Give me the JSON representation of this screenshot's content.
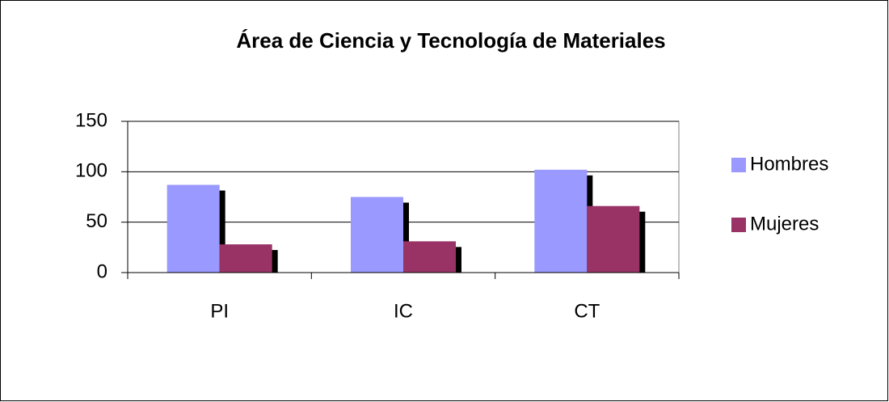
{
  "chart_data": {
    "type": "bar",
    "title": "Área de Ciencia y Tecnología de Materiales",
    "categories": [
      "PI",
      "IC",
      "CT"
    ],
    "series": [
      {
        "name": "Hombres",
        "color": "#9999ff",
        "values": [
          87,
          75,
          102
        ]
      },
      {
        "name": "Mujeres",
        "color": "#993366",
        "values": [
          28,
          31,
          66
        ]
      }
    ],
    "ylim": [
      0,
      150
    ],
    "yticks": [
      0,
      50,
      100,
      150
    ],
    "grid": true,
    "legend": "right"
  }
}
